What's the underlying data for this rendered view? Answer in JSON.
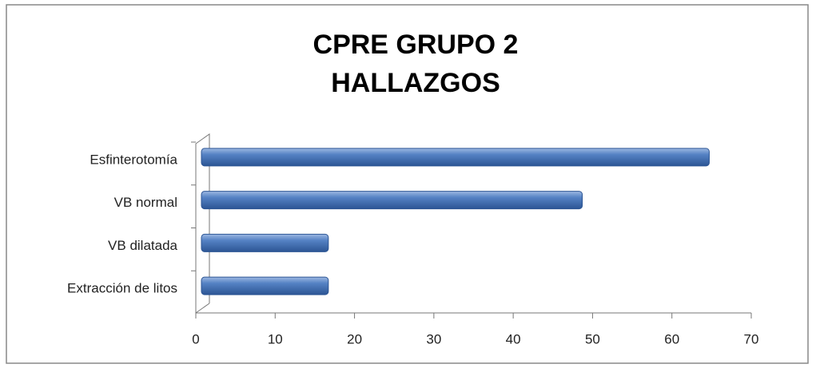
{
  "chart_data": {
    "type": "barh",
    "title": [
      "CPRE GRUPO 2",
      "HALLAZGOS"
    ],
    "categories": [
      "Esfinterotomía",
      "VB normal",
      "VB dilatada",
      "Extracción de litos"
    ],
    "values": [
      64,
      48,
      16,
      16
    ],
    "color": "#4a76b8",
    "xlim": [
      0,
      70
    ],
    "xticks": [
      0,
      10,
      20,
      30,
      40,
      50,
      60,
      70
    ],
    "grid": false
  }
}
